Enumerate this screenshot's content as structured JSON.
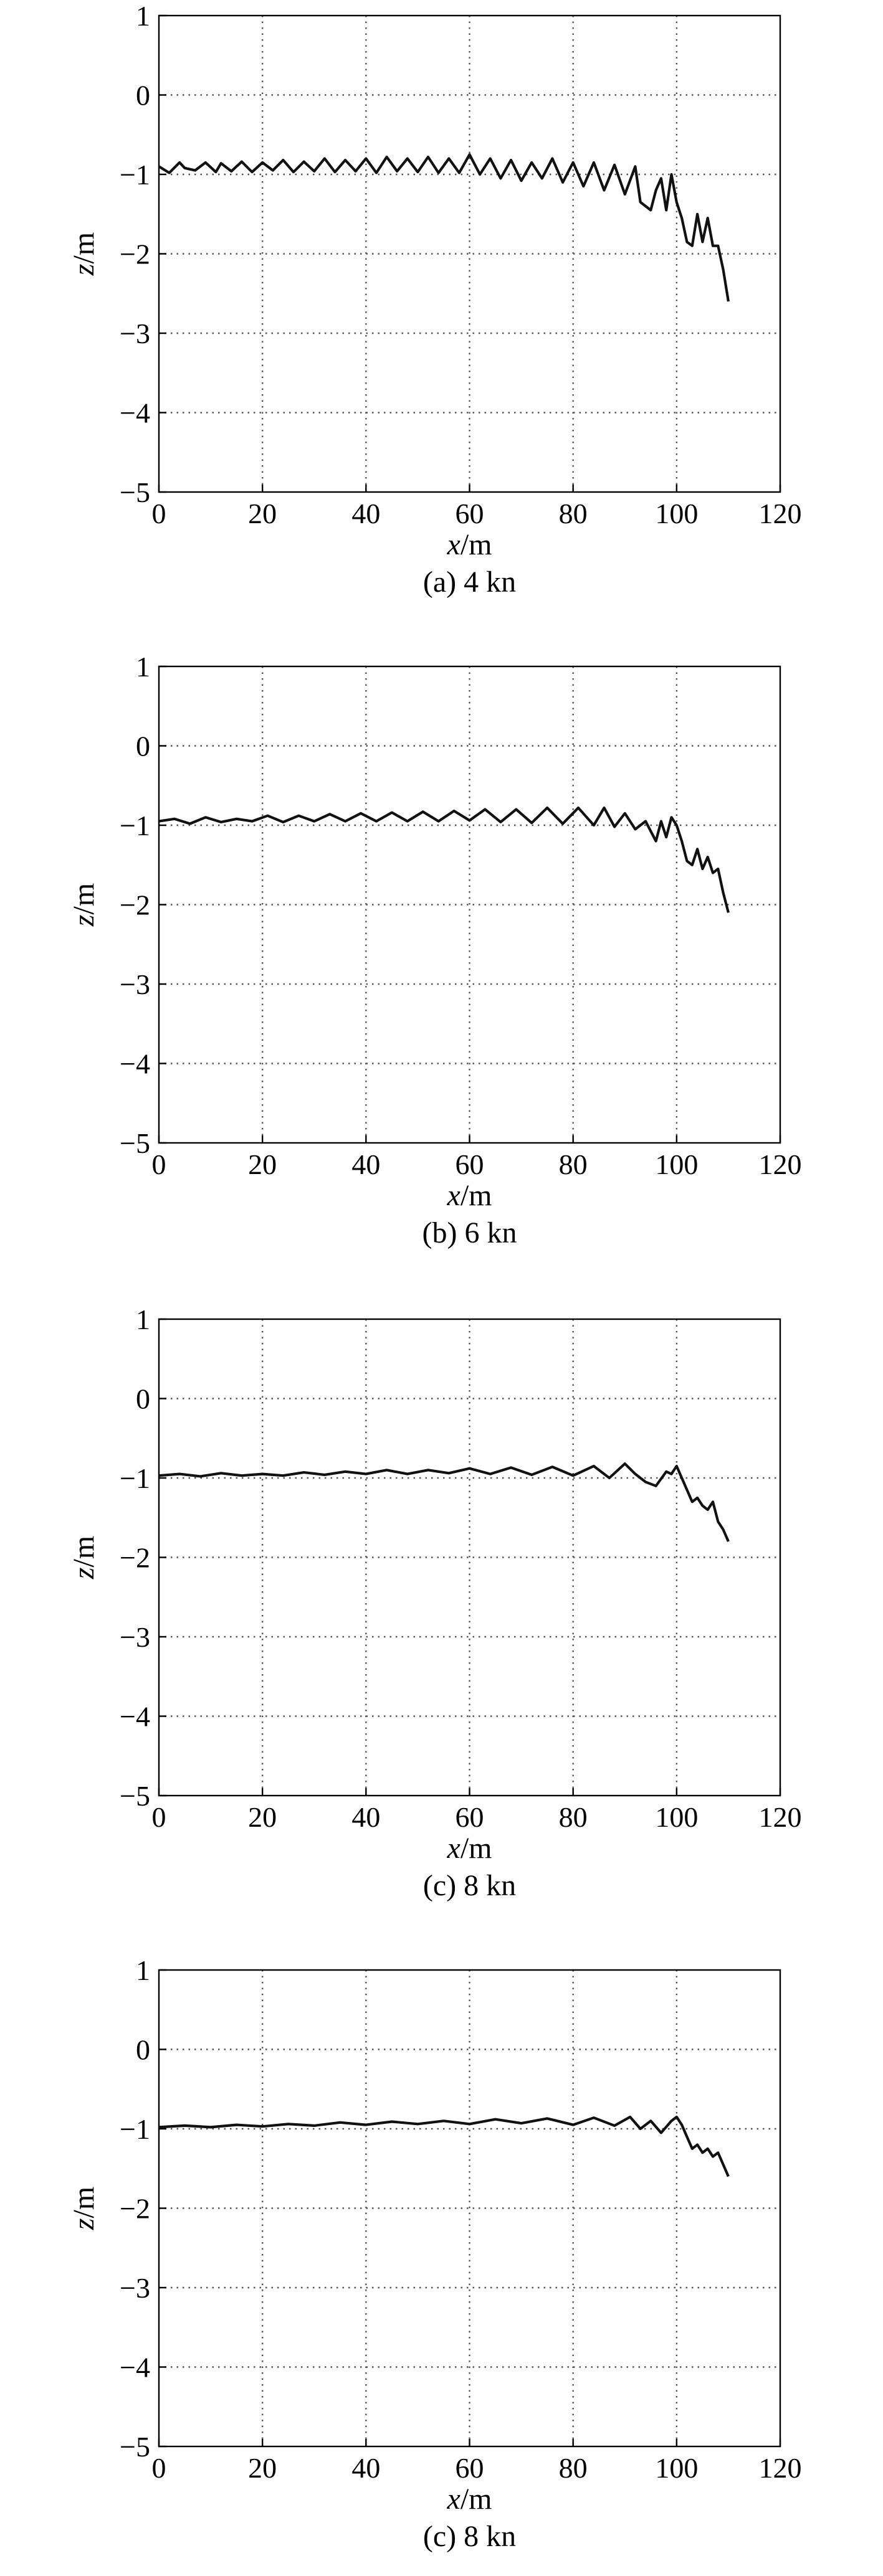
{
  "chart_data": [
    {
      "type": "line",
      "caption": "(a) 4 kn",
      "xlabel_italic": "x",
      "xlabel_unit": "/m",
      "ylabel_italic": "z",
      "ylabel_unit": "/m",
      "xlim": [
        0,
        120
      ],
      "ylim": [
        -5,
        1
      ],
      "xticks": [
        "0",
        "20",
        "40",
        "60",
        "80",
        "100",
        "120"
      ],
      "yticks": [
        "1",
        "0",
        "−1",
        "−2",
        "−3",
        "−4",
        "−5"
      ],
      "grid": true,
      "series": [
        {
          "x": [
            0,
            2,
            4,
            5,
            7,
            9,
            11,
            12,
            14,
            16,
            18,
            20,
            22,
            24,
            26,
            28,
            30,
            32,
            34,
            36,
            38,
            40,
            42,
            44,
            46,
            48,
            50,
            52,
            54,
            56,
            58,
            60,
            62,
            64,
            66,
            68,
            70,
            72,
            74,
            76,
            78,
            80,
            82,
            84,
            86,
            88,
            90,
            92,
            93,
            95,
            96,
            97,
            98,
            99,
            100,
            101,
            102,
            103,
            104,
            105,
            106,
            107,
            108,
            109,
            110
          ],
          "y": [
            -0.9,
            -0.98,
            -0.85,
            -0.92,
            -0.95,
            -0.85,
            -0.97,
            -0.86,
            -0.96,
            -0.84,
            -0.97,
            -0.85,
            -0.95,
            -0.82,
            -0.97,
            -0.84,
            -0.96,
            -0.8,
            -0.97,
            -0.82,
            -0.96,
            -0.8,
            -0.98,
            -0.78,
            -0.96,
            -0.8,
            -0.97,
            -0.78,
            -0.98,
            -0.8,
            -0.98,
            -0.75,
            -1.0,
            -0.8,
            -1.05,
            -0.82,
            -1.08,
            -0.85,
            -1.05,
            -0.8,
            -1.1,
            -0.85,
            -1.15,
            -0.85,
            -1.2,
            -0.88,
            -1.25,
            -0.9,
            -1.35,
            -1.45,
            -1.2,
            -1.05,
            -1.45,
            -1.0,
            -1.35,
            -1.55,
            -1.85,
            -1.9,
            -1.5,
            -1.85,
            -1.55,
            -1.9,
            -1.9,
            -2.2,
            -2.6
          ]
        }
      ]
    },
    {
      "type": "line",
      "caption": "(b) 6 kn",
      "xlabel_italic": "x",
      "xlabel_unit": "/m",
      "ylabel_italic": "z",
      "ylabel_unit": "/m",
      "xlim": [
        0,
        120
      ],
      "ylim": [
        -5,
        1
      ],
      "xticks": [
        "0",
        "20",
        "40",
        "60",
        "80",
        "100",
        "120"
      ],
      "yticks": [
        "1",
        "0",
        "−1",
        "−2",
        "−3",
        "−4",
        "−5"
      ],
      "grid": true,
      "series": [
        {
          "x": [
            0,
            3,
            6,
            9,
            12,
            15,
            18,
            21,
            24,
            27,
            30,
            33,
            36,
            39,
            42,
            45,
            48,
            51,
            54,
            57,
            60,
            63,
            66,
            69,
            72,
            75,
            78,
            81,
            84,
            86,
            88,
            90,
            92,
            94,
            96,
            97,
            98,
            99,
            100,
            101,
            102,
            103,
            104,
            105,
            106,
            107,
            108,
            109,
            110
          ],
          "y": [
            -0.95,
            -0.92,
            -0.98,
            -0.9,
            -0.96,
            -0.92,
            -0.95,
            -0.88,
            -0.96,
            -0.88,
            -0.95,
            -0.86,
            -0.95,
            -0.85,
            -0.95,
            -0.84,
            -0.95,
            -0.83,
            -0.95,
            -0.82,
            -0.94,
            -0.8,
            -0.96,
            -0.8,
            -0.97,
            -0.78,
            -0.98,
            -0.78,
            -1.0,
            -0.78,
            -1.02,
            -0.85,
            -1.05,
            -0.95,
            -1.2,
            -0.95,
            -1.15,
            -0.9,
            -1.0,
            -1.2,
            -1.45,
            -1.5,
            -1.3,
            -1.55,
            -1.4,
            -1.6,
            -1.55,
            -1.85,
            -2.1
          ]
        }
      ]
    },
    {
      "type": "line",
      "caption": "(c) 8 kn",
      "xlabel_italic": "x",
      "xlabel_unit": "/m",
      "ylabel_italic": "z",
      "ylabel_unit": "/m",
      "xlim": [
        0,
        120
      ],
      "ylim": [
        -5,
        1
      ],
      "xticks": [
        "0",
        "20",
        "40",
        "60",
        "80",
        "100",
        "120"
      ],
      "yticks": [
        "1",
        "0",
        "−1",
        "−2",
        "−3",
        "−4",
        "−5"
      ],
      "grid": true,
      "series": [
        {
          "x": [
            0,
            4,
            8,
            12,
            16,
            20,
            24,
            28,
            32,
            36,
            40,
            44,
            48,
            52,
            56,
            60,
            64,
            68,
            72,
            76,
            80,
            84,
            87,
            90,
            92,
            94,
            96,
            98,
            99,
            100,
            101,
            102,
            103,
            104,
            105,
            106,
            107,
            108,
            109,
            110
          ],
          "y": [
            -0.97,
            -0.95,
            -0.98,
            -0.94,
            -0.97,
            -0.95,
            -0.97,
            -0.93,
            -0.96,
            -0.92,
            -0.95,
            -0.9,
            -0.95,
            -0.9,
            -0.94,
            -0.88,
            -0.95,
            -0.87,
            -0.96,
            -0.86,
            -0.97,
            -0.85,
            -1.0,
            -0.82,
            -0.95,
            -1.05,
            -1.1,
            -0.92,
            -0.95,
            -0.85,
            -1.0,
            -1.15,
            -1.3,
            -1.25,
            -1.35,
            -1.4,
            -1.3,
            -1.55,
            -1.65,
            -1.8
          ]
        }
      ]
    },
    {
      "type": "line",
      "caption": "(c) 8 kn",
      "xlabel_italic": "x",
      "xlabel_unit": "/m",
      "ylabel_italic": "z",
      "ylabel_unit": "/m",
      "xlim": [
        0,
        120
      ],
      "ylim": [
        -5,
        1
      ],
      "xticks": [
        "0",
        "20",
        "40",
        "60",
        "80",
        "100",
        "120"
      ],
      "yticks": [
        "1",
        "0",
        "−1",
        "−2",
        "−3",
        "−4",
        "−5"
      ],
      "grid": true,
      "series": [
        {
          "x": [
            0,
            5,
            10,
            15,
            20,
            25,
            30,
            35,
            40,
            45,
            50,
            55,
            60,
            65,
            70,
            75,
            80,
            84,
            88,
            91,
            93,
            95,
            97,
            99,
            100,
            101,
            102,
            103,
            104,
            105,
            106,
            107,
            108,
            109,
            110
          ],
          "y": [
            -0.98,
            -0.96,
            -0.98,
            -0.95,
            -0.97,
            -0.94,
            -0.96,
            -0.92,
            -0.95,
            -0.91,
            -0.94,
            -0.9,
            -0.94,
            -0.88,
            -0.93,
            -0.87,
            -0.95,
            -0.86,
            -0.96,
            -0.85,
            -1.0,
            -0.9,
            -1.05,
            -0.9,
            -0.85,
            -0.95,
            -1.1,
            -1.25,
            -1.2,
            -1.3,
            -1.25,
            -1.35,
            -1.3,
            -1.45,
            -1.6
          ]
        }
      ]
    }
  ]
}
